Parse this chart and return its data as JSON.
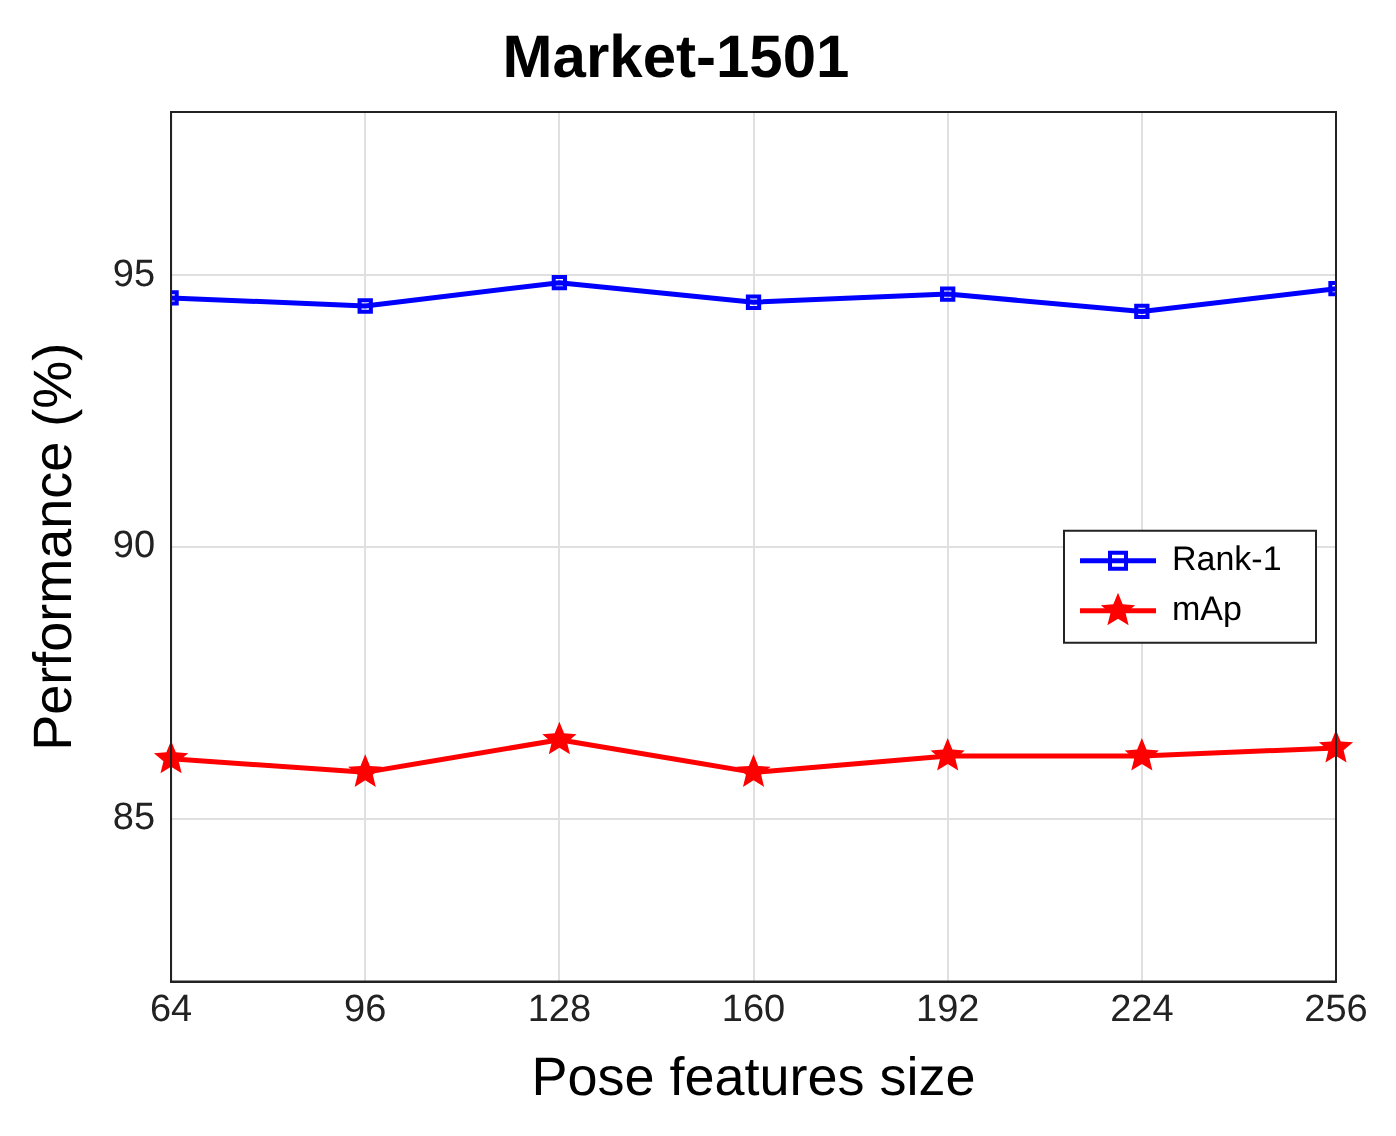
{
  "chart_data": {
    "type": "line",
    "title": "Market-1501",
    "xlabel": "Pose features size",
    "ylabel": "Performance (%)",
    "x": [
      64,
      96,
      128,
      160,
      192,
      224,
      256
    ],
    "series": [
      {
        "name": "Rank-1",
        "color": "#0000ff",
        "marker": "square",
        "values": [
          94.58,
          94.43,
          94.86,
          94.5,
          94.65,
          94.33,
          94.75
        ]
      },
      {
        "name": "mAp",
        "color": "#ff0000",
        "marker": "star",
        "values": [
          86.1,
          85.85,
          86.45,
          85.85,
          86.15,
          86.15,
          86.3
        ]
      }
    ],
    "xlim": [
      64,
      256
    ],
    "xticks": [
      64,
      96,
      128,
      160,
      192,
      224,
      256
    ],
    "ylim": [
      82,
      98
    ],
    "yticks": [
      85,
      90,
      95
    ],
    "grid": true,
    "legend": "right",
    "line_style": "solid"
  }
}
